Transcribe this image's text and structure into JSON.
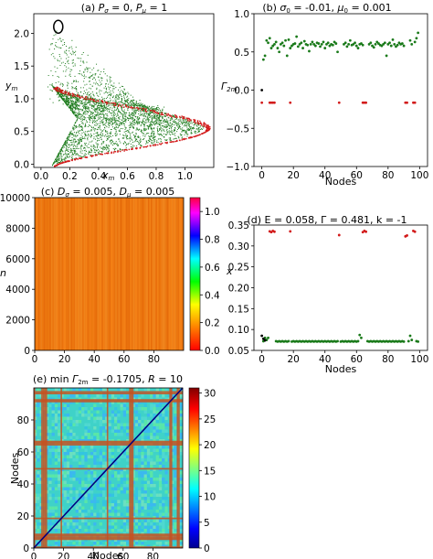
{
  "chart_data": [
    {
      "type": "scatter",
      "title": "(a) P_σ = 0, P_μ = 1",
      "xlabel": "x_m",
      "ylabel": "y_m",
      "xlim": [
        -0.05,
        1.2
      ],
      "ylim": [
        -0.05,
        2.3
      ],
      "xticks": [
        "0.0",
        "0.2",
        "0.4",
        "0.6",
        "0.8",
        "1.0"
      ],
      "yticks": [
        "0.0",
        "0.5",
        "1.0",
        "1.5",
        "2.0"
      ],
      "xtick_values": [
        0,
        0.2,
        0.4,
        0.6,
        0.8,
        1.0
      ],
      "ytick_values": [
        0,
        0.5,
        1.0,
        1.5,
        2.0
      ],
      "point_colors": [
        "#1a7a1a",
        "#d21a1a",
        "#000000"
      ],
      "description_of_marks": "phase-space attractor: green filled lobe, red outer boundary orbit, black loop near (0.1, 2.1)"
    },
    {
      "type": "scatter",
      "title": "(b) σ_0 = -0.01, μ_0 = 0.001",
      "xlabel": "Nodes",
      "ylabel": "Γ_2m",
      "xlim": [
        -5,
        105
      ],
      "ylim": [
        -1.0,
        1.0
      ],
      "xticks": [
        "0",
        "20",
        "40",
        "60",
        "80",
        "100"
      ],
      "yticks": [
        "−1.0",
        "−0.5",
        "0.0",
        "0.5",
        "1.0"
      ],
      "xtick_values": [
        0,
        20,
        40,
        60,
        80,
        100
      ],
      "ytick_values": [
        -1.0,
        -0.5,
        0.0,
        0.5,
        1.0
      ],
      "series": [
        {
          "color": "#1a7a1a",
          "x": [
            1,
            2,
            3,
            4,
            5,
            6,
            7,
            8,
            9,
            10,
            11,
            12,
            13,
            14,
            15,
            16,
            17,
            18,
            19,
            20,
            21,
            22,
            23,
            24,
            25,
            26,
            27,
            28,
            29,
            30,
            31,
            32,
            33,
            34,
            35,
            36,
            37,
            38,
            39,
            40,
            41,
            42,
            43,
            44,
            45,
            46,
            47,
            48,
            52,
            53,
            54,
            55,
            56,
            57,
            58,
            59,
            60,
            61,
            62,
            63,
            64,
            68,
            69,
            70,
            71,
            72,
            73,
            74,
            75,
            76,
            77,
            78,
            79,
            80,
            81,
            82,
            83,
            84,
            85,
            86,
            87,
            88,
            89,
            90,
            94,
            95,
            97,
            98,
            99
          ],
          "y": [
            0.4,
            0.45,
            0.65,
            0.62,
            0.68,
            0.55,
            0.58,
            0.6,
            0.63,
            0.55,
            0.5,
            0.6,
            0.62,
            0.58,
            0.65,
            0.45,
            0.66,
            0.55,
            0.58,
            0.6,
            0.61,
            0.7,
            0.57,
            0.6,
            0.62,
            0.55,
            0.64,
            0.6,
            0.59,
            0.51,
            0.6,
            0.63,
            0.6,
            0.58,
            0.62,
            0.61,
            0.57,
            0.6,
            0.63,
            0.55,
            0.6,
            0.62,
            0.58,
            0.6,
            0.59,
            0.63,
            0.61,
            0.5,
            0.6,
            0.62,
            0.57,
            0.6,
            0.65,
            0.59,
            0.6,
            0.62,
            0.58,
            0.55,
            0.6,
            0.61,
            0.59,
            0.6,
            0.62,
            0.58,
            0.56,
            0.6,
            0.63,
            0.61,
            0.59,
            0.58,
            0.6,
            0.62,
            0.45,
            0.6,
            0.62,
            0.58,
            0.66,
            0.6,
            0.57,
            0.59,
            0.62,
            0.6,
            0.61,
            0.58,
            0.65,
            0.6,
            0.63,
            0.68,
            0.75
          ]
        },
        {
          "color": "#d21a1a",
          "x": [
            0,
            5,
            6,
            7,
            8,
            18,
            49,
            64,
            65,
            66,
            91,
            92,
            96,
            97
          ],
          "y": [
            -0.165,
            -0.165,
            -0.165,
            -0.165,
            -0.165,
            -0.165,
            -0.165,
            -0.165,
            -0.165,
            -0.165,
            -0.165,
            -0.165,
            -0.165,
            -0.165
          ]
        },
        {
          "color": "#000000",
          "x": [
            0
          ],
          "y": [
            0.0
          ]
        }
      ]
    },
    {
      "type": "heatmap",
      "title": "(c) D_σ = 0.005, D_μ = 0.005",
      "xlabel": "",
      "ylabel": "n",
      "xlim": [
        0,
        100
      ],
      "ylim": [
        0,
        10000
      ],
      "xticks": [
        "0",
        "20",
        "40",
        "60",
        "80"
      ],
      "yticks": [
        "0",
        "2000",
        "4000",
        "6000",
        "8000",
        "10000"
      ],
      "xtick_values": [
        0,
        20,
        40,
        60,
        80
      ],
      "ytick_values": [
        0,
        2000,
        4000,
        6000,
        8000,
        10000
      ],
      "colorbar_ticks": [
        "0.0",
        "0.2",
        "0.4",
        "0.6",
        "0.8",
        "1.0"
      ],
      "colorbar_values": [
        0,
        0.2,
        0.4,
        0.6,
        0.8,
        1.0
      ],
      "colorbar_range": [
        0,
        1.1
      ],
      "colormap": "hsv-like (red→orange→yellow→green→cyan→blue→magenta)",
      "dominant_value": 0.05
    },
    {
      "type": "scatter",
      "title": "(d) E = 0.058, Γ = 0.481, k = -1",
      "xlabel": "Nodes",
      "ylabel": "x",
      "xlim": [
        -5,
        105
      ],
      "ylim": [
        0.05,
        0.35
      ],
      "xticks": [
        "0",
        "20",
        "40",
        "60",
        "80",
        "100"
      ],
      "yticks": [
        "0.05",
        "0.10",
        "0.15",
        "0.20",
        "0.25",
        "0.30",
        "0.35"
      ],
      "xtick_values": [
        0,
        20,
        40,
        60,
        80,
        100
      ],
      "ytick_values": [
        0.05,
        0.1,
        0.15,
        0.2,
        0.25,
        0.3,
        0.35
      ],
      "series": [
        {
          "color": "#d21a1a",
          "x": [
            5,
            6,
            7,
            8,
            18,
            49,
            64,
            65,
            66,
            91,
            92,
            96,
            97
          ],
          "y": [
            0.335,
            0.333,
            0.336,
            0.334,
            0.335,
            0.326,
            0.333,
            0.336,
            0.334,
            0.323,
            0.325,
            0.336,
            0.334
          ]
        },
        {
          "color": "#1a7a1a",
          "x": [
            1,
            2,
            3,
            4,
            9,
            10,
            11,
            12,
            13,
            14,
            15,
            16,
            17,
            19,
            20,
            21,
            22,
            23,
            24,
            25,
            26,
            27,
            28,
            29,
            30,
            31,
            32,
            33,
            34,
            35,
            36,
            37,
            38,
            39,
            40,
            41,
            42,
            43,
            44,
            45,
            46,
            47,
            48,
            50,
            51,
            52,
            53,
            54,
            55,
            56,
            57,
            58,
            59,
            60,
            61,
            62,
            63,
            67,
            68,
            69,
            70,
            71,
            72,
            73,
            74,
            75,
            76,
            77,
            78,
            79,
            80,
            81,
            82,
            83,
            84,
            85,
            86,
            87,
            88,
            89,
            90,
            93,
            94,
            95,
            98,
            99
          ],
          "y": [
            0.072,
            0.08,
            0.075,
            0.08,
            0.072,
            0.071,
            0.072,
            0.071,
            0.072,
            0.071,
            0.072,
            0.071,
            0.072,
            0.071,
            0.072,
            0.071,
            0.072,
            0.071,
            0.072,
            0.071,
            0.072,
            0.071,
            0.072,
            0.071,
            0.072,
            0.071,
            0.072,
            0.071,
            0.072,
            0.071,
            0.072,
            0.071,
            0.072,
            0.071,
            0.072,
            0.071,
            0.072,
            0.071,
            0.072,
            0.071,
            0.072,
            0.071,
            0.072,
            0.071,
            0.072,
            0.071,
            0.072,
            0.071,
            0.072,
            0.071,
            0.072,
            0.071,
            0.072,
            0.071,
            0.072,
            0.087,
            0.08,
            0.072,
            0.071,
            0.072,
            0.071,
            0.072,
            0.071,
            0.072,
            0.071,
            0.072,
            0.071,
            0.072,
            0.071,
            0.072,
            0.071,
            0.072,
            0.071,
            0.072,
            0.071,
            0.072,
            0.071,
            0.072,
            0.071,
            0.072,
            0.071,
            0.072,
            0.085,
            0.075,
            0.072,
            0.071
          ]
        },
        {
          "color": "#000000",
          "x": [
            0,
            1,
            2
          ],
          "y": [
            0.085,
            0.078,
            0.074
          ]
        }
      ]
    },
    {
      "type": "heatmap",
      "title": "(e) min Γ_2m = -0.1705, R = 10",
      "xlabel": "Nodes",
      "ylabel": "Nodes",
      "xlim": [
        0,
        100
      ],
      "ylim": [
        0,
        100
      ],
      "xticks": [
        "0",
        "20",
        "40",
        "60",
        "80"
      ],
      "yticks": [
        "0",
        "20",
        "40",
        "60",
        "80"
      ],
      "xtick_values": [
        0,
        20,
        40,
        60,
        80
      ],
      "ytick_values": [
        0,
        20,
        40,
        60,
        80
      ],
      "colorbar_ticks": [
        "0",
        "5",
        "10",
        "15",
        "20",
        "25",
        "30"
      ],
      "colorbar_values": [
        0,
        5,
        10,
        15,
        20,
        25,
        30
      ],
      "colorbar_range": [
        0,
        31
      ],
      "colormap": "jet",
      "highlighted_nodes": [
        0,
        5,
        6,
        7,
        8,
        18,
        49,
        64,
        65,
        66,
        91,
        92,
        96,
        97
      ]
    }
  ]
}
